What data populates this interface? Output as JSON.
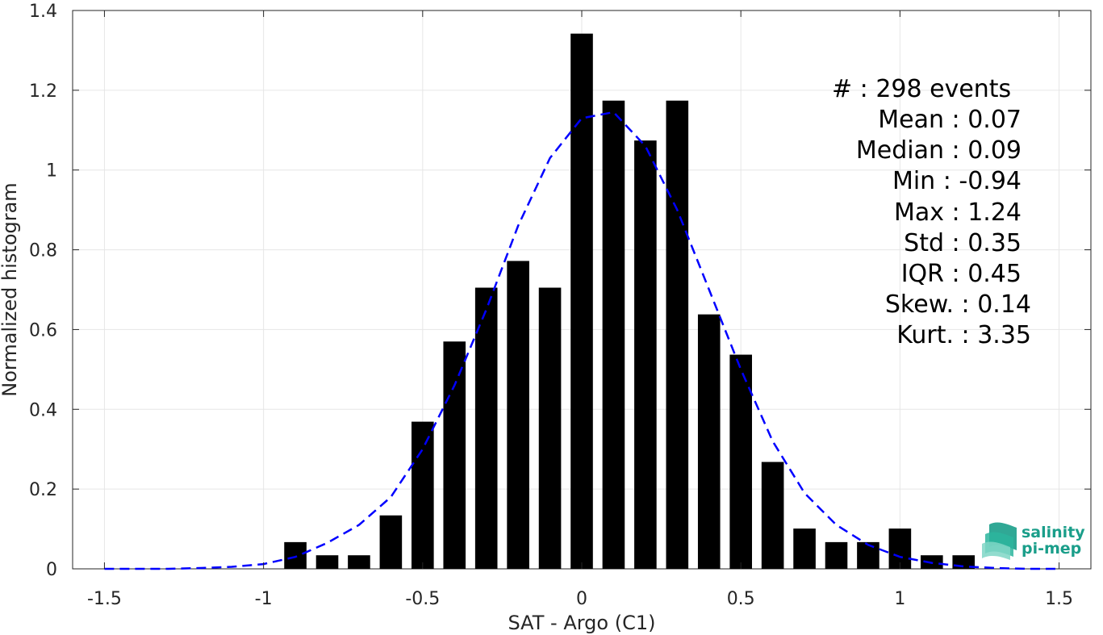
{
  "chart_data": {
    "type": "bar",
    "xlabel": "SAT - Argo (C1)",
    "ylabel": "Normalized histogram",
    "xlim": [
      -1.6,
      1.6
    ],
    "ylim": [
      0,
      1.4
    ],
    "xticks": [
      -1.5,
      -1,
      -0.5,
      0,
      0.5,
      1,
      1.5
    ],
    "xtick_labels": [
      "-1.5",
      "-1",
      "-0.5",
      "0",
      "0.5",
      "1",
      "1.5"
    ],
    "yticks": [
      0,
      0.2,
      0.4,
      0.6,
      0.8,
      1,
      1.2,
      1.4
    ],
    "ytick_labels": [
      "0",
      "0.2",
      "0.4",
      "0.6",
      "0.8",
      "1",
      "1.2",
      "1.4"
    ],
    "grid": true,
    "bar_color": "#000000",
    "bins": [
      -0.9,
      -0.8,
      -0.7,
      -0.6,
      -0.5,
      -0.4,
      -0.3,
      -0.2,
      -0.1,
      0.0,
      0.1,
      0.2,
      0.3,
      0.4,
      0.5,
      0.6,
      0.7,
      0.8,
      0.9,
      1.0,
      1.1,
      1.2
    ],
    "values": [
      0.067,
      0.034,
      0.034,
      0.134,
      0.369,
      0.57,
      0.705,
      0.772,
      0.705,
      1.342,
      1.174,
      1.074,
      1.174,
      0.638,
      0.537,
      0.268,
      0.101,
      0.067,
      0.067,
      0.101,
      0.034,
      0.034
    ],
    "fit_curve": {
      "color": "#0000ff",
      "style": "dashed",
      "x": [
        -1.5,
        -1.4,
        -1.3,
        -1.2,
        -1.1,
        -1.0,
        -0.9,
        -0.8,
        -0.7,
        -0.6,
        -0.5,
        -0.4,
        -0.3,
        -0.2,
        -0.1,
        0.0,
        0.1,
        0.2,
        0.3,
        0.4,
        0.5,
        0.6,
        0.7,
        0.8,
        0.9,
        1.0,
        1.1,
        1.2,
        1.3,
        1.4,
        1.5
      ],
      "y": [
        0.0,
        0.0,
        0.0,
        0.002,
        0.005,
        0.012,
        0.03,
        0.065,
        0.11,
        0.18,
        0.3,
        0.46,
        0.65,
        0.86,
        1.03,
        1.13,
        1.145,
        1.06,
        0.9,
        0.7,
        0.5,
        0.32,
        0.19,
        0.11,
        0.06,
        0.03,
        0.015,
        0.006,
        0.002,
        0.0,
        0.0
      ]
    },
    "annotations": [
      "#  : 298 events",
      "Mean : 0.07",
      "Median : 0.09",
      "Min : -0.94",
      "Max : 1.24",
      "Std : 0.35",
      "IQR : 0.45",
      "Skew. : 0.14",
      "Kurt. : 3.35"
    ]
  },
  "logo": {
    "line1": "salinity",
    "line2": "pi-mep",
    "color": "#1a9e8a"
  }
}
